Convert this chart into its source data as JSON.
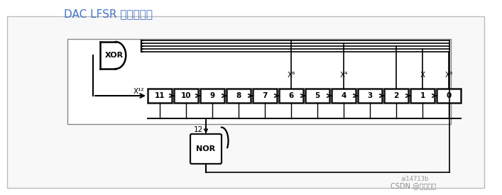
{
  "title": "DAC LFSR 寄存器算法",
  "title_color": "#4472C4",
  "bg_color": "#ffffff",
  "panel_color": "#f8f8f8",
  "watermark1": "ai14713b",
  "watermark2": "CSDN @比特冬哥",
  "registers": [
    "11",
    "10",
    "9",
    "8",
    "7",
    "6",
    "5",
    "4",
    "3",
    "2",
    "1",
    "0"
  ],
  "xor_label": "XOR",
  "nor_label": "NOR",
  "x12_label": "X¹²",
  "x6_label": "X⁶",
  "x4_label": "X⁴",
  "x1_label": "X",
  "x0_label": "X⁰",
  "tap_label": "12"
}
